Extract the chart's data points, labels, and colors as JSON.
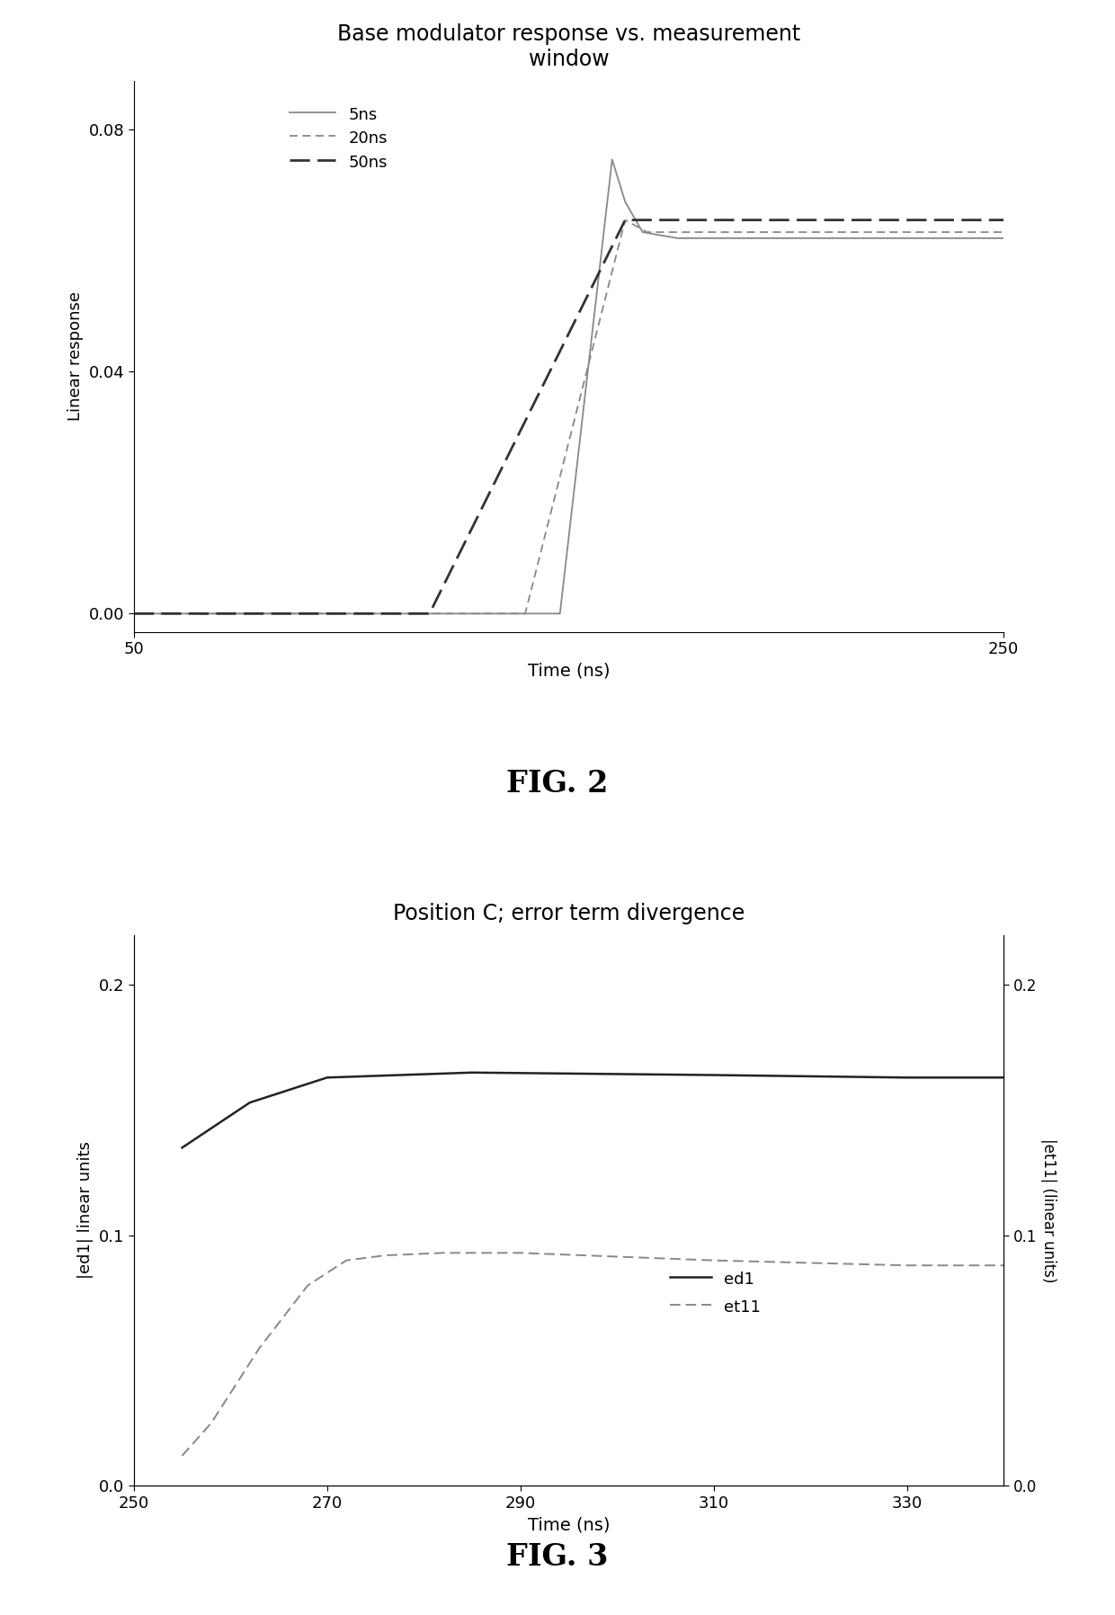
{
  "fig2": {
    "title": "Base modulator response vs. measurement\nwindow",
    "xlabel": "Time (ns)",
    "ylabel": "Linear response",
    "xlim": [
      50,
      250
    ],
    "ylim": [
      -0.003,
      0.088
    ],
    "yticks": [
      0,
      0.04,
      0.08
    ],
    "xticks": [
      50,
      250
    ],
    "line_5ns": {
      "x": [
        50,
        148,
        160,
        163,
        167,
        175,
        250
      ],
      "y": [
        0,
        0,
        0.075,
        0.068,
        0.063,
        0.062,
        0.062
      ],
      "color": "#888888",
      "linestyle": "-",
      "linewidth": 1.3,
      "label": "5ns"
    },
    "line_20ns": {
      "x": [
        50,
        140,
        163,
        168,
        250
      ],
      "y": [
        0,
        0,
        0.065,
        0.063,
        0.063
      ],
      "color": "#888888",
      "linestyle": "--",
      "linewidth": 1.3,
      "label": "20ns",
      "dashes": [
        5,
        3
      ]
    },
    "line_50ns": {
      "x": [
        50,
        118,
        163,
        250
      ],
      "y": [
        0,
        0,
        0.065,
        0.065
      ],
      "color": "#333333",
      "linestyle": "--",
      "linewidth": 2.0,
      "label": "50ns",
      "dashes": [
        8,
        3
      ]
    }
  },
  "fig3": {
    "title": "Position C; error term divergence",
    "xlabel": "Time (ns)",
    "ylabel_left": "|ed1| linear units",
    "ylabel_right": "|et11| (linear units)",
    "xlim": [
      250,
      340
    ],
    "ylim": [
      0,
      0.22
    ],
    "yticks": [
      0,
      0.1,
      0.2
    ],
    "xticks": [
      250,
      270,
      290,
      310,
      330
    ],
    "line_ed1": {
      "x": [
        255,
        262,
        270,
        285,
        310,
        330,
        340
      ],
      "y": [
        0.135,
        0.153,
        0.163,
        0.165,
        0.164,
        0.163,
        0.163
      ],
      "color": "#222222",
      "linestyle": "-",
      "linewidth": 1.8,
      "label": "ed1"
    },
    "line_et11": {
      "x": [
        255,
        258,
        263,
        268,
        272,
        276,
        282,
        290,
        310,
        330,
        340
      ],
      "y": [
        0.012,
        0.025,
        0.055,
        0.08,
        0.09,
        0.092,
        0.093,
        0.093,
        0.09,
        0.088,
        0.088
      ],
      "color": "#888888",
      "linestyle": "--",
      "linewidth": 1.4,
      "label": "et11",
      "dashes": [
        6,
        3
      ]
    }
  },
  "background_color": "#ffffff",
  "fig2_label": "FIG. 2",
  "fig3_label": "FIG. 3"
}
